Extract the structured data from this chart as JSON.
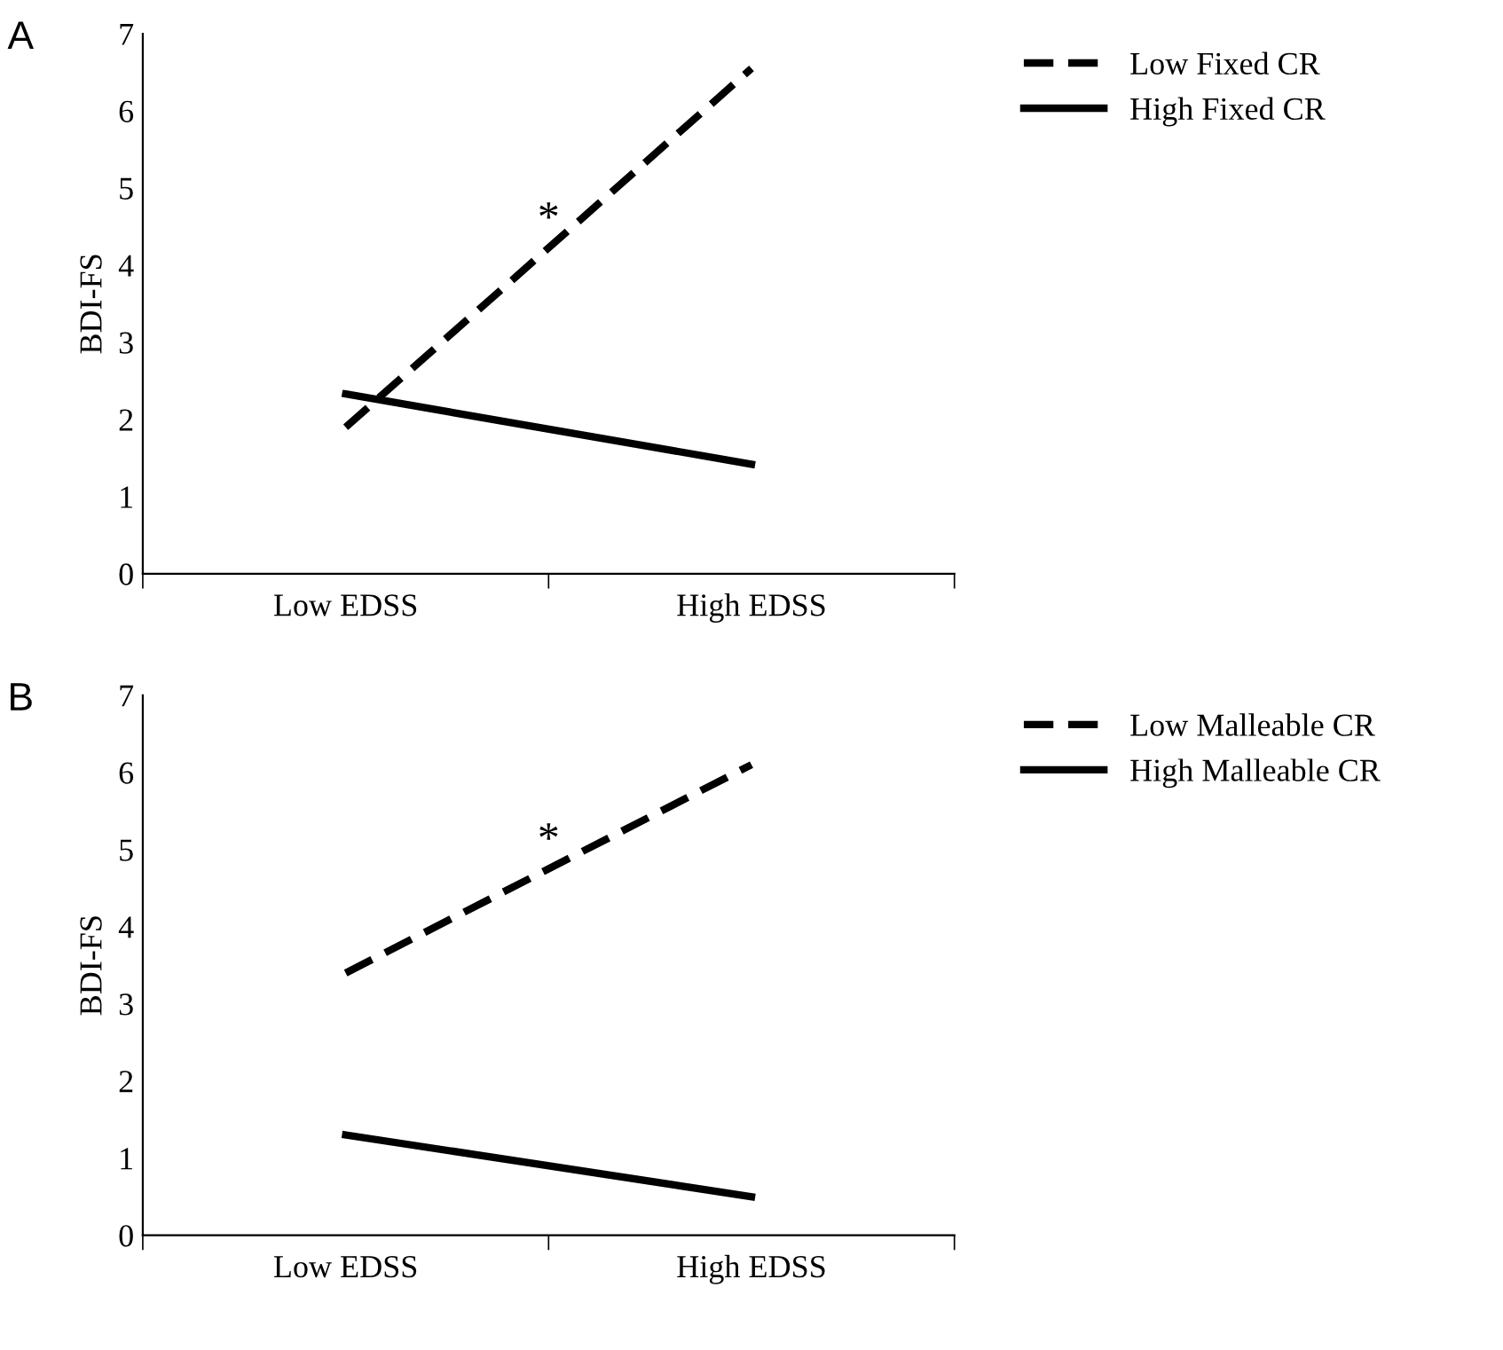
{
  "chart_data": [
    {
      "type": "line",
      "title": "A",
      "ylabel": "BDI-FS",
      "categories": [
        "Low EDSS",
        "High EDSS"
      ],
      "ylim": [
        0,
        7
      ],
      "yticks": [
        0,
        1,
        2,
        3,
        4,
        5,
        6,
        7
      ],
      "grid": false,
      "legend": "top right",
      "marker": "none",
      "annotations": [
        "*"
      ],
      "series": [
        {
          "name": "Low Fixed CR",
          "color": "#000000",
          "line_style": "dashed",
          "values": [
            1.9,
            6.55
          ]
        },
        {
          "name": "High Fixed CR",
          "color": "#000000",
          "line_style": "solid",
          "values": [
            2.33,
            1.42
          ]
        }
      ]
    },
    {
      "type": "line",
      "title": "B",
      "ylabel": "BDI-FS",
      "categories": [
        "Low EDSS",
        "High EDSS"
      ],
      "ylim": [
        0,
        7
      ],
      "yticks": [
        0,
        1,
        2,
        3,
        4,
        5,
        6,
        7
      ],
      "grid": false,
      "legend": "top right",
      "marker": "none",
      "annotations": [
        "*"
      ],
      "series": [
        {
          "name": "Low Malleable CR",
          "color": "#000000",
          "line_style": "dashed",
          "values": [
            3.4,
            6.1
          ]
        },
        {
          "name": "High Malleable CR",
          "color": "#000000",
          "line_style": "solid",
          "values": [
            1.3,
            0.5
          ]
        }
      ]
    }
  ]
}
